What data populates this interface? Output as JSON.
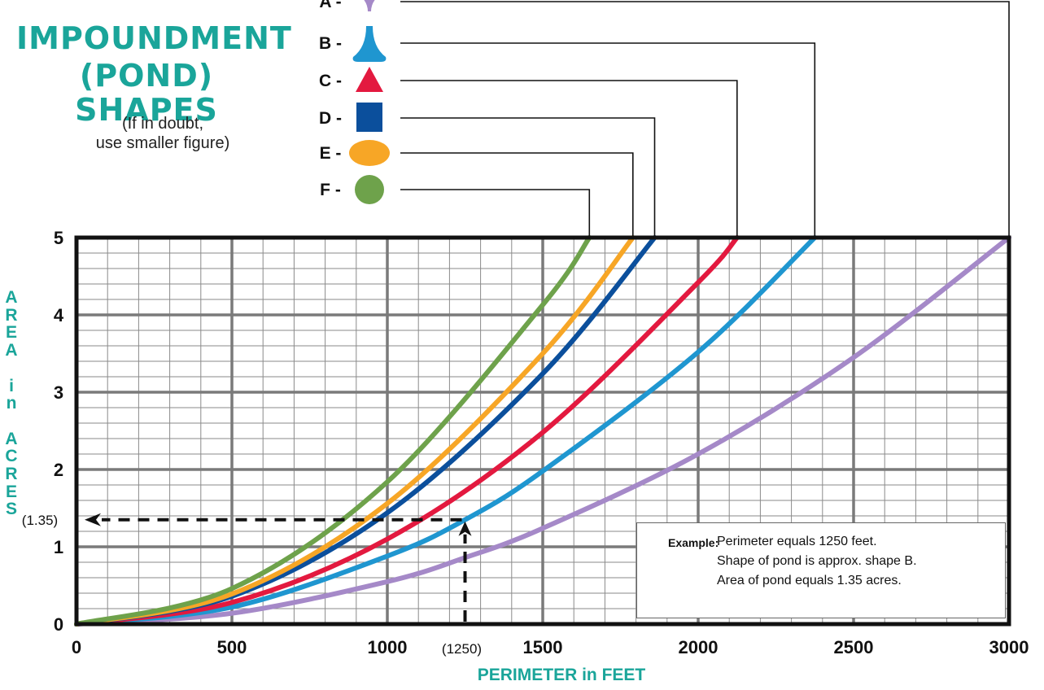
{
  "title": {
    "line1": "IMPOUNDMENT",
    "line2": "(POND) SHAPES"
  },
  "note": {
    "line1": "(If in doubt,",
    "line2": "use smaller figure)"
  },
  "colors": {
    "A": "#a589c8",
    "B": "#1f96d0",
    "C": "#e3193f",
    "D": "#0b4f9c",
    "E": "#f7a626",
    "F": "#6ea24b",
    "accent_teal": "#1aa59a"
  },
  "shape_legend": [
    {
      "letter": "A",
      "label": "A -",
      "icon": "inverted-funnel-icon"
    },
    {
      "letter": "B",
      "label": "B -",
      "icon": "funnel-icon"
    },
    {
      "letter": "C",
      "label": "C -",
      "icon": "triangle-icon"
    },
    {
      "letter": "D",
      "label": "D -",
      "icon": "square-icon"
    },
    {
      "letter": "E",
      "label": "E -",
      "icon": "ellipse-icon"
    },
    {
      "letter": "F",
      "label": "F -",
      "icon": "circle-icon"
    }
  ],
  "example": {
    "key": "Example:",
    "line1": "Perimeter equals 1250 feet.",
    "line2": "Shape of pond is approx. shape B.",
    "line3": "Area of pond equals 1.35 acres."
  },
  "chart_data": {
    "type": "line",
    "xlabel": "PERIMETER in FEET",
    "ylabel": "AREA in ACRES",
    "xlim": [
      0,
      3000
    ],
    "ylim": [
      0,
      5
    ],
    "x_ticks": [
      "0",
      "500",
      "1000",
      "1500",
      "2000",
      "2500",
      "3000"
    ],
    "y_ticks": [
      "0",
      "1",
      "2",
      "3",
      "4",
      "5"
    ],
    "grid": true,
    "series": [
      {
        "name": "A",
        "x": [
          0,
          500,
          1000,
          1250,
          1500,
          2000,
          2500,
          3000
        ],
        "y": [
          0,
          0.14,
          0.55,
          0.86,
          1.24,
          2.2,
          3.45,
          5.0
        ]
      },
      {
        "name": "B",
        "x": [
          0,
          500,
          1000,
          1250,
          1500,
          2000,
          2375
        ],
        "y": [
          0,
          0.22,
          0.88,
          1.35,
          1.98,
          3.52,
          5.0
        ]
      },
      {
        "name": "C",
        "x": [
          0,
          500,
          1000,
          1500,
          2000,
          2125
        ],
        "y": [
          0,
          0.28,
          1.1,
          2.48,
          4.42,
          5.0
        ]
      },
      {
        "name": "D",
        "x": [
          0,
          500,
          1000,
          1500,
          1860
        ],
        "y": [
          0,
          0.36,
          1.44,
          3.24,
          5.0
        ]
      },
      {
        "name": "E",
        "x": [
          0,
          500,
          1000,
          1500,
          1790
        ],
        "y": [
          0,
          0.39,
          1.56,
          3.5,
          5.0
        ]
      },
      {
        "name": "F",
        "x": [
          0,
          500,
          1000,
          1500,
          1650
        ],
        "y": [
          0,
          0.46,
          1.84,
          4.13,
          5.0
        ]
      }
    ],
    "annotation": {
      "x": 1250,
      "y": 1.35,
      "x_label": "(1250)",
      "y_label": "(1.35)"
    }
  }
}
